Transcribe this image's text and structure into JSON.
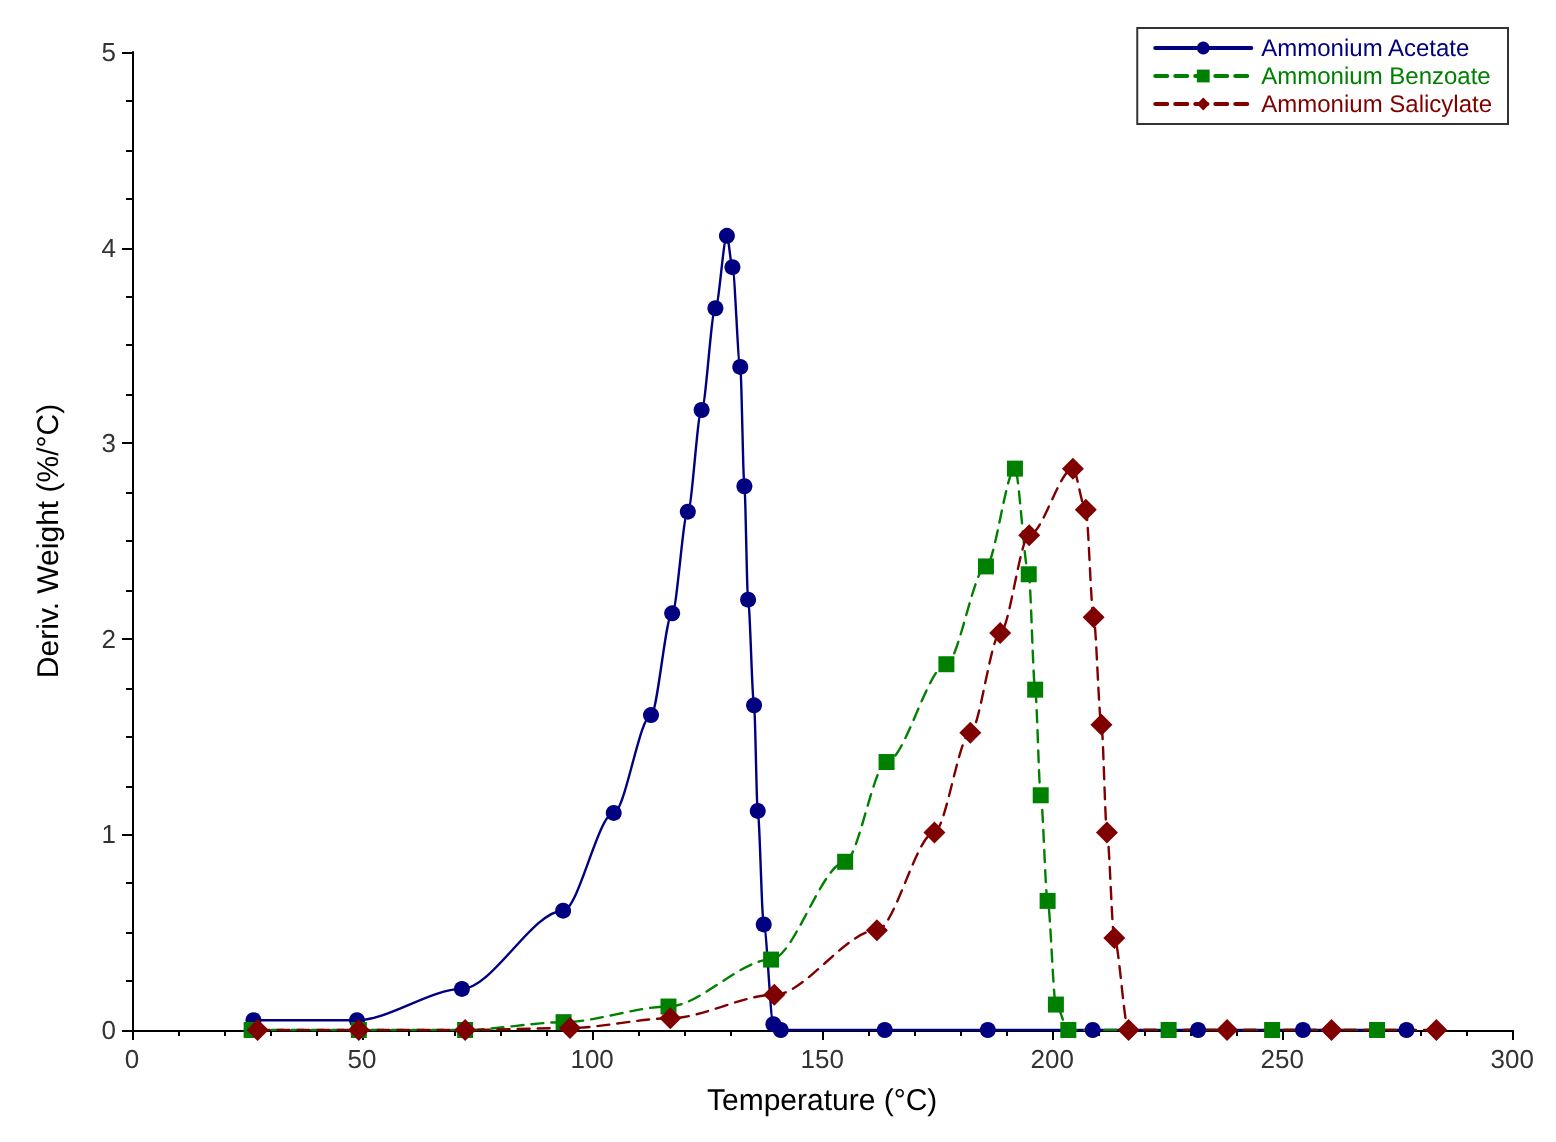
{
  "chart_data": {
    "type": "line",
    "xlabel": "Temperature (°C)",
    "ylabel": "Deriv. Weight (%/°C)",
    "xlim": [
      0,
      300
    ],
    "xticks": [
      0,
      50,
      100,
      150,
      200,
      250,
      300
    ],
    "ylim": [
      0,
      5
    ],
    "yticks": [
      0,
      1,
      2,
      3,
      4,
      5
    ],
    "grid": false,
    "legend": "top right",
    "series": [
      {
        "name": "Ammonium Acetate",
        "color": "#000080",
        "marker": "circle",
        "line_style": "solid",
        "x": [
          26.4,
          48.9,
          71.7,
          93.7,
          104.7,
          112.8,
          117.4,
          120.8,
          123.8,
          126.8,
          129.3,
          130.5,
          132.2,
          133.1,
          133.9,
          135.2,
          136,
          137.3,
          139.4,
          141,
          163.6,
          186,
          208.8,
          231.7,
          254.5,
          277
        ],
        "values": [
          0.05,
          0.05,
          0.21,
          0.61,
          1.11,
          1.61,
          2.13,
          2.65,
          3.17,
          3.69,
          4.06,
          3.9,
          3.39,
          2.78,
          2.2,
          1.66,
          1.12,
          0.54,
          0.03,
          0,
          0,
          0,
          0,
          0,
          0,
          0
        ]
      },
      {
        "name": "Ammonium Benzoate",
        "color": "#008000",
        "marker": "square",
        "line_style": "dashed",
        "x": [
          26,
          49.3,
          72.4,
          93.8,
          116.6,
          138.9,
          155,
          164,
          177,
          185.6,
          191.9,
          194.9,
          196.3,
          197.5,
          199,
          200.8,
          203.5,
          225.3,
          247.8,
          270.6
        ],
        "values": [
          0,
          0,
          0,
          0.04,
          0.12,
          0.36,
          0.86,
          1.37,
          1.87,
          2.37,
          2.87,
          2.33,
          1.74,
          1.2,
          0.66,
          0.13,
          0,
          0,
          0,
          0
        ]
      },
      {
        "name": "Ammonium Salicylate",
        "color": "#800000",
        "marker": "diamond",
        "line_style": "dashed",
        "x": [
          27.3,
          49.3,
          72.4,
          95.2,
          117,
          139.6,
          161.9,
          174.4,
          182.2,
          188.7,
          195,
          204.5,
          207.3,
          209,
          210.7,
          211.9,
          213.5,
          216.6,
          238,
          260.7,
          283.5
        ],
        "values": [
          0,
          0,
          0,
          0.01,
          0.06,
          0.18,
          0.51,
          1.01,
          1.52,
          2.03,
          2.53,
          2.87,
          2.66,
          2.11,
          1.56,
          1.01,
          0.47,
          0,
          0,
          0,
          0
        ]
      }
    ]
  }
}
